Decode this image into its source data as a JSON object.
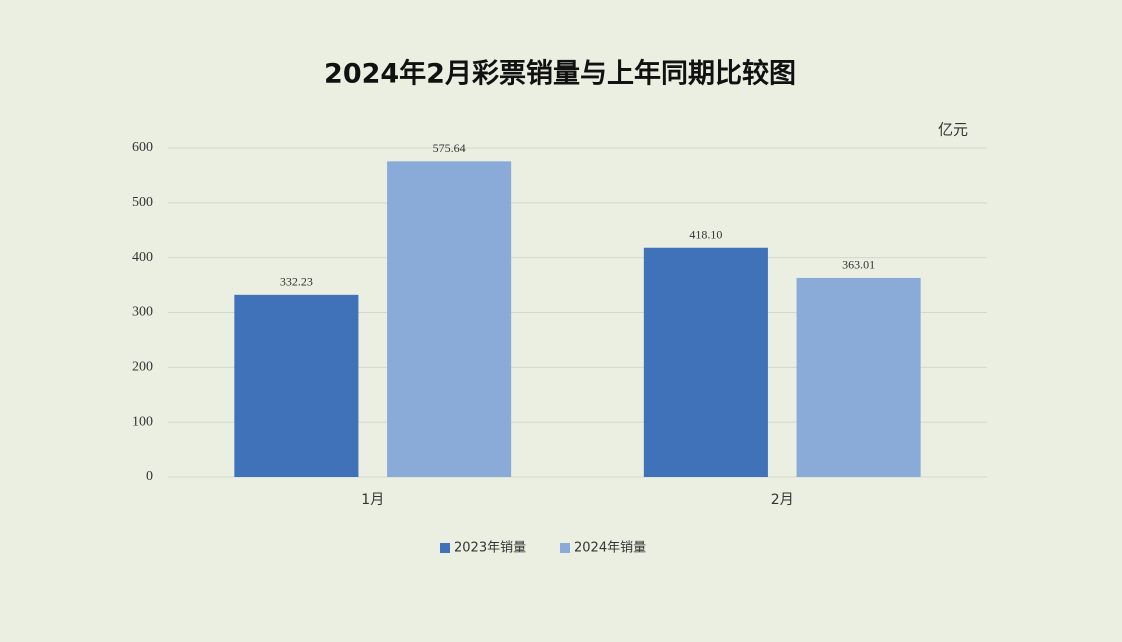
{
  "chart_data": {
    "type": "bar",
    "title": "2024年2月彩票销量与上年同期比较图",
    "y_label": "亿元",
    "categories": [
      "1月",
      "2月"
    ],
    "series": [
      {
        "name": "2023年销量",
        "color": "#3f72b8",
        "values": [
          332.23,
          418.1
        ],
        "value_labels": [
          "332.23",
          "418.10"
        ]
      },
      {
        "name": "2024年销量",
        "color": "#8aaad8",
        "values": [
          575.64,
          363.01
        ],
        "value_labels": [
          "575.64",
          "363.01"
        ]
      }
    ],
    "ylim": [
      0,
      600
    ],
    "yticks": [
      0,
      100,
      200,
      300,
      400,
      500,
      600
    ],
    "grid": true,
    "legend": "bottom"
  }
}
